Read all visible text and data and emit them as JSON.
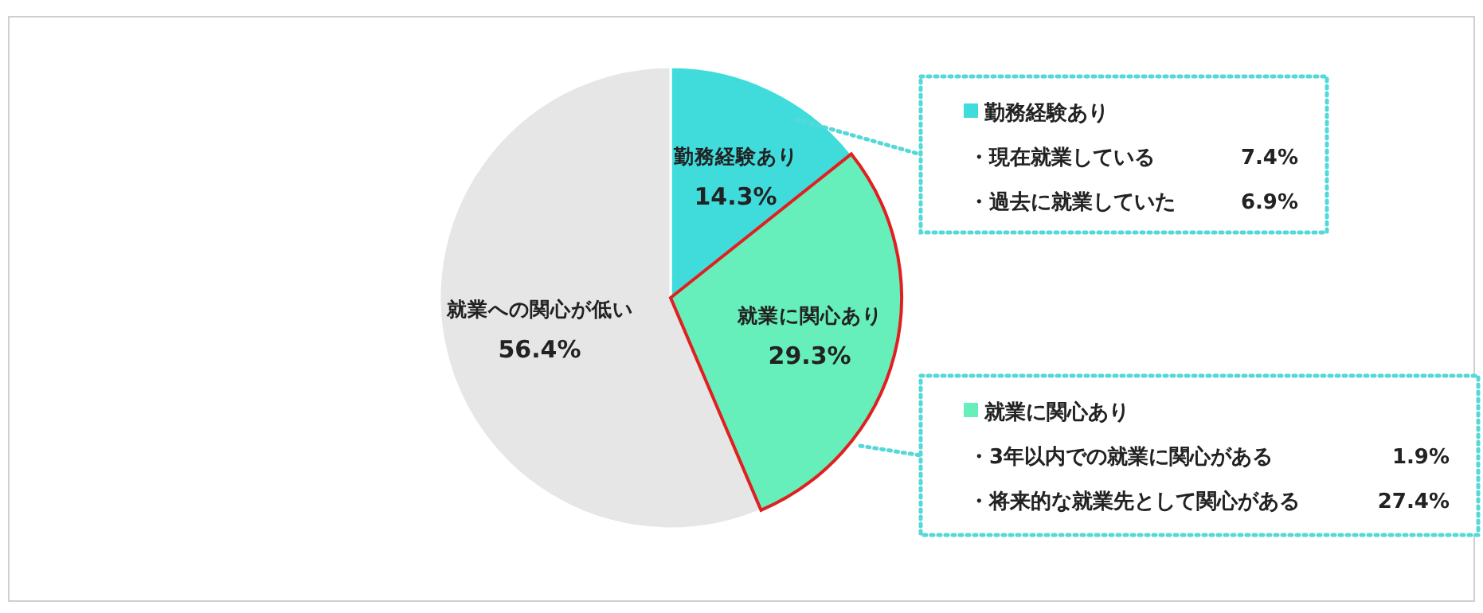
{
  "chart_data": {
    "type": "pie",
    "categories": [
      "勤務経験あり",
      "就業に関心あり",
      "就業への関心が低い"
    ],
    "values": [
      14.3,
      29.3,
      56.4
    ],
    "colors": [
      "#40dcdc",
      "#66eebb",
      "#e6e6e6"
    ],
    "value_labels": [
      "14.3%",
      "29.3%",
      "56.4%"
    ],
    "annotations": [
      "勤務経験あり",
      "・現在就業している 7.4%",
      "・過去に就業していた 6.9%",
      "就業に関心あり",
      "・3年以内での就業に関心がある 1.9%",
      "・将来的な就業先として関心がある 27.4%"
    ]
  }
}
